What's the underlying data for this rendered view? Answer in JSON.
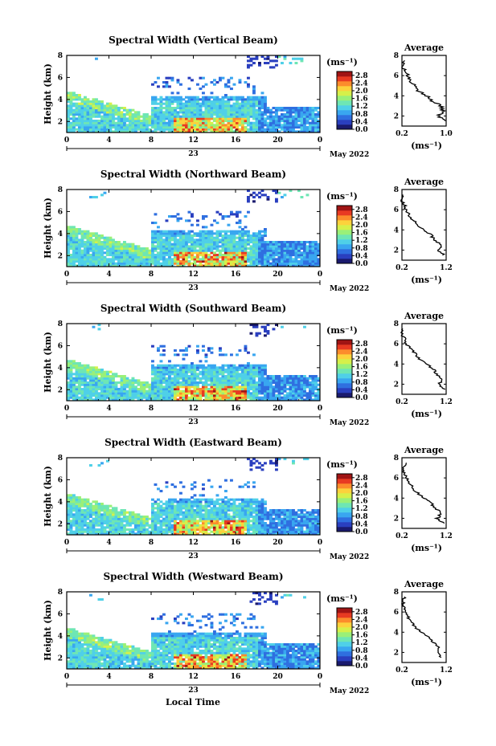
{
  "figure": {
    "xlabel": "Local Time",
    "day_label": "23",
    "date_label": "May 2022",
    "ylabel": "Height (km)",
    "colorbar_unit": "(ms⁻¹)",
    "profile_title": "Average",
    "profile_xlabel": "(ms⁻¹)",
    "colormap": [
      "#1a1a6e",
      "#2a3fbf",
      "#2f6fe0",
      "#39a6f0",
      "#4fd0e8",
      "#6ee6b4",
      "#9af078",
      "#d6f04a",
      "#fcd23c",
      "#fc8c2c",
      "#e83a22",
      "#a01414"
    ]
  },
  "chart_data": [
    {
      "type": "heatmap",
      "title": "Spectral Width (Vertical Beam)",
      "x_ticks": [
        "0",
        "4",
        "8",
        "12",
        "16",
        "20",
        "0"
      ],
      "y_ticks": [
        "2",
        "4",
        "6",
        "8"
      ],
      "xlim": [
        0,
        24
      ],
      "ylim": [
        1,
        8
      ],
      "colorbar_ticks": [
        "0.0",
        "0.4",
        "0.8",
        "1.2",
        "1.6",
        "2.0",
        "2.4",
        "2.8"
      ],
      "clim": [
        0,
        3
      ],
      "profile": {
        "xlim": [
          0.2,
          1.0
        ],
        "x_ticks": [
          "0.2",
          "1.0"
        ],
        "y_ticks": [
          "2",
          "4",
          "6",
          "8"
        ],
        "values": [
          [
            1.5,
            1.0
          ],
          [
            2.0,
            0.85
          ],
          [
            2.5,
            0.95
          ],
          [
            3.0,
            0.9
          ],
          [
            3.5,
            0.75
          ],
          [
            4.0,
            0.65
          ],
          [
            4.5,
            0.5
          ],
          [
            5.0,
            0.45
          ],
          [
            5.5,
            0.35
          ],
          [
            6.0,
            0.3
          ],
          [
            6.5,
            0.25
          ],
          [
            7.0,
            0.2
          ],
          [
            7.5,
            0.25
          ]
        ]
      }
    },
    {
      "type": "heatmap",
      "title": "Spectral Width (Northward Beam)",
      "x_ticks": [
        "0",
        "4",
        "8",
        "12",
        "16",
        "20",
        "0"
      ],
      "y_ticks": [
        "2",
        "4",
        "6",
        "8"
      ],
      "xlim": [
        0,
        24
      ],
      "ylim": [
        1,
        8
      ],
      "colorbar_ticks": [
        "0.0",
        "0.4",
        "0.8",
        "1.2",
        "1.6",
        "2.0",
        "2.4",
        "2.8"
      ],
      "clim": [
        0,
        3
      ],
      "profile": {
        "xlim": [
          0.2,
          1.2
        ],
        "x_ticks": [
          "0.2",
          "1.2"
        ],
        "y_ticks": [
          "2",
          "4",
          "6",
          "8"
        ],
        "values": [
          [
            1.5,
            1.15
          ],
          [
            2.0,
            1.0
          ],
          [
            2.5,
            1.1
          ],
          [
            3.0,
            0.95
          ],
          [
            3.5,
            0.85
          ],
          [
            4.0,
            0.7
          ],
          [
            4.5,
            0.55
          ],
          [
            5.0,
            0.45
          ],
          [
            5.5,
            0.35
          ],
          [
            6.0,
            0.3
          ],
          [
            6.5,
            0.25
          ],
          [
            7.0,
            0.2
          ],
          [
            7.5,
            0.22
          ]
        ]
      }
    },
    {
      "type": "heatmap",
      "title": "Spectral Width (Southward Beam)",
      "x_ticks": [
        "0",
        "4",
        "8",
        "12",
        "16",
        "20",
        "0"
      ],
      "y_ticks": [
        "2",
        "4",
        "6",
        "8"
      ],
      "xlim": [
        0,
        24
      ],
      "ylim": [
        1,
        8
      ],
      "colorbar_ticks": [
        "0.0",
        "0.4",
        "0.8",
        "1.2",
        "1.6",
        "2.0",
        "2.4",
        "2.8"
      ],
      "clim": [
        0,
        3
      ],
      "profile": {
        "xlim": [
          0.2,
          1.2
        ],
        "x_ticks": [
          "0.2",
          "1.2"
        ],
        "y_ticks": [
          "2",
          "4",
          "6",
          "8"
        ],
        "values": [
          [
            1.5,
            1.15
          ],
          [
            2.0,
            1.05
          ],
          [
            2.5,
            1.1
          ],
          [
            3.0,
            1.0
          ],
          [
            3.5,
            0.9
          ],
          [
            4.0,
            0.75
          ],
          [
            4.5,
            0.6
          ],
          [
            5.0,
            0.5
          ],
          [
            5.5,
            0.4
          ],
          [
            6.0,
            0.3
          ],
          [
            6.5,
            0.25
          ],
          [
            7.0,
            0.2
          ],
          [
            7.5,
            0.22
          ]
        ]
      }
    },
    {
      "type": "heatmap",
      "title": "Spectral Width (Eastward Beam)",
      "x_ticks": [
        "0",
        "4",
        "8",
        "12",
        "16",
        "20",
        "0"
      ],
      "y_ticks": [
        "2",
        "4",
        "6",
        "8"
      ],
      "xlim": [
        0,
        24
      ],
      "ylim": [
        1,
        8
      ],
      "colorbar_ticks": [
        "0.0",
        "0.4",
        "0.8",
        "1.2",
        "1.6",
        "2.0",
        "2.4",
        "2.8"
      ],
      "clim": [
        0,
        3
      ],
      "profile": {
        "xlim": [
          0.2,
          1.2
        ],
        "x_ticks": [
          "0.2",
          "1.2"
        ],
        "y_ticks": [
          "2",
          "4",
          "6",
          "8"
        ],
        "values": [
          [
            1.5,
            1.15
          ],
          [
            2.0,
            1.0
          ],
          [
            2.5,
            1.1
          ],
          [
            3.0,
            0.95
          ],
          [
            3.5,
            0.85
          ],
          [
            4.0,
            0.7
          ],
          [
            4.5,
            0.55
          ],
          [
            5.0,
            0.45
          ],
          [
            5.5,
            0.35
          ],
          [
            6.0,
            0.3
          ],
          [
            6.5,
            0.25
          ],
          [
            7.0,
            0.25
          ],
          [
            7.5,
            0.3
          ]
        ]
      }
    },
    {
      "type": "heatmap",
      "title": "Spectral Width (Westward Beam)",
      "x_ticks": [
        "0",
        "4",
        "8",
        "12",
        "16",
        "20",
        "0"
      ],
      "y_ticks": [
        "2",
        "4",
        "6",
        "8"
      ],
      "xlim": [
        0,
        24
      ],
      "ylim": [
        1,
        8
      ],
      "colorbar_ticks": [
        "0.0",
        "0.4",
        "0.8",
        "1.2",
        "1.6",
        "2.0",
        "2.4",
        "2.8"
      ],
      "clim": [
        0,
        3
      ],
      "profile": {
        "xlim": [
          0.2,
          1.2
        ],
        "x_ticks": [
          "0.2",
          "1.2"
        ],
        "y_ticks": [
          "2",
          "4",
          "6",
          "8"
        ],
        "values": [
          [
            1.5,
            1.1
          ],
          [
            2.0,
            1.0
          ],
          [
            2.5,
            1.05
          ],
          [
            3.0,
            0.9
          ],
          [
            3.5,
            0.8
          ],
          [
            4.0,
            0.65
          ],
          [
            4.5,
            0.5
          ],
          [
            5.0,
            0.4
          ],
          [
            5.5,
            0.35
          ],
          [
            6.0,
            0.3
          ],
          [
            6.5,
            0.25
          ],
          [
            7.0,
            0.22
          ],
          [
            7.5,
            0.25
          ]
        ]
      }
    }
  ]
}
